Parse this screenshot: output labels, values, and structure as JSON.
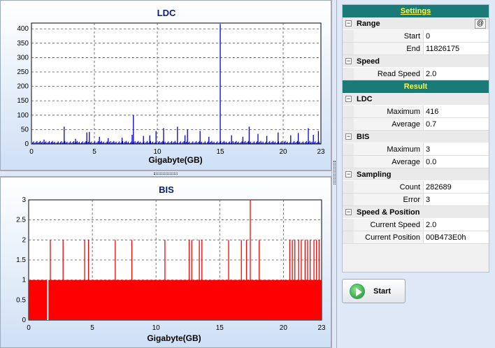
{
  "ldc_chart": {
    "title": "LDC",
    "xlabel": "Gigabyte(GB)",
    "x_ticks": [
      "0",
      "5",
      "10",
      "15",
      "20",
      "23"
    ],
    "y_ticks": [
      "0",
      "50",
      "100",
      "150",
      "200",
      "250",
      "300",
      "350",
      "400"
    ]
  },
  "bis_chart": {
    "title": "BIS",
    "xlabel": "Gigabyte(GB)",
    "x_ticks": [
      "0",
      "5",
      "10",
      "15",
      "20",
      "23"
    ],
    "y_ticks": [
      "0",
      "0.5",
      "1",
      "1.5",
      "2",
      "2.5",
      "3"
    ]
  },
  "chart_data": [
    {
      "type": "bar",
      "title": "LDC",
      "xlabel": "Gigabyte(GB)",
      "ylabel": "",
      "xlim": [
        0,
        23
      ],
      "ylim": [
        0,
        420
      ],
      "grid": true,
      "baseline": 8,
      "spikes": [
        {
          "x": 1.0,
          "y": 15
        },
        {
          "x": 2.6,
          "y": 60
        },
        {
          "x": 3.5,
          "y": 18
        },
        {
          "x": 4.4,
          "y": 40
        },
        {
          "x": 4.6,
          "y": 42
        },
        {
          "x": 5.4,
          "y": 25
        },
        {
          "x": 6.1,
          "y": 20
        },
        {
          "x": 7.2,
          "y": 22
        },
        {
          "x": 8.0,
          "y": 32
        },
        {
          "x": 8.1,
          "y": 100
        },
        {
          "x": 8.9,
          "y": 28
        },
        {
          "x": 9.4,
          "y": 30
        },
        {
          "x": 9.9,
          "y": 45
        },
        {
          "x": 10.5,
          "y": 55
        },
        {
          "x": 11.6,
          "y": 60
        },
        {
          "x": 12.2,
          "y": 30
        },
        {
          "x": 12.4,
          "y": 50
        },
        {
          "x": 13.4,
          "y": 45
        },
        {
          "x": 14.1,
          "y": 25
        },
        {
          "x": 15.0,
          "y": 416
        },
        {
          "x": 15.9,
          "y": 30
        },
        {
          "x": 16.8,
          "y": 25
        },
        {
          "x": 17.3,
          "y": 60
        },
        {
          "x": 18.0,
          "y": 35
        },
        {
          "x": 18.7,
          "y": 28
        },
        {
          "x": 19.6,
          "y": 40
        },
        {
          "x": 20.6,
          "y": 30
        },
        {
          "x": 21.2,
          "y": 38
        },
        {
          "x": 22.0,
          "y": 55
        },
        {
          "x": 22.4,
          "y": 32
        },
        {
          "x": 22.8,
          "y": 45
        }
      ]
    },
    {
      "type": "bar",
      "title": "BIS",
      "xlabel": "Gigabyte(GB)",
      "ylabel": "",
      "xlim": [
        0,
        23
      ],
      "ylim": [
        0,
        3
      ],
      "grid": true,
      "baseline": 1,
      "gaps": [
        {
          "x": 1.5,
          "y": 0
        }
      ],
      "spikes": [
        {
          "x": 1.7,
          "y": 2
        },
        {
          "x": 2.7,
          "y": 2
        },
        {
          "x": 4.4,
          "y": 2
        },
        {
          "x": 4.7,
          "y": 2
        },
        {
          "x": 6.8,
          "y": 2
        },
        {
          "x": 8.1,
          "y": 2
        },
        {
          "x": 10.7,
          "y": 2
        },
        {
          "x": 12.6,
          "y": 2
        },
        {
          "x": 12.8,
          "y": 2
        },
        {
          "x": 13.4,
          "y": 2
        },
        {
          "x": 13.6,
          "y": 2
        },
        {
          "x": 15.7,
          "y": 2
        },
        {
          "x": 16.7,
          "y": 2
        },
        {
          "x": 17.1,
          "y": 2
        },
        {
          "x": 17.4,
          "y": 3
        },
        {
          "x": 18.1,
          "y": 2
        },
        {
          "x": 20.5,
          "y": 2
        },
        {
          "x": 20.7,
          "y": 2
        },
        {
          "x": 20.9,
          "y": 2
        },
        {
          "x": 21.2,
          "y": 2
        },
        {
          "x": 21.4,
          "y": 2
        },
        {
          "x": 21.7,
          "y": 2
        },
        {
          "x": 21.9,
          "y": 2
        },
        {
          "x": 22.1,
          "y": 2
        },
        {
          "x": 22.4,
          "y": 2
        },
        {
          "x": 22.6,
          "y": 2
        },
        {
          "x": 22.8,
          "y": 2
        }
      ]
    }
  ],
  "settings": {
    "header": "Settings",
    "at_button": "@",
    "range_label": "Range",
    "start_label": "Start",
    "start_value": "0",
    "end_label": "End",
    "end_value": "11826175",
    "speed_label": "Speed",
    "read_speed_label": "Read Speed",
    "read_speed_value": "2.0"
  },
  "result": {
    "header": "Result",
    "ldc_label": "LDC",
    "ldc_max_label": "Maximum",
    "ldc_max_value": "416",
    "ldc_avg_label": "Average",
    "ldc_avg_value": "0.7",
    "bis_label": "BIS",
    "bis_max_label": "Maximum",
    "bis_max_value": "3",
    "bis_avg_label": "Average",
    "bis_avg_value": "0.0",
    "sampling_label": "Sampling",
    "count_label": "Count",
    "count_value": "282689",
    "error_label": "Error",
    "error_value": "3",
    "sp_label": "Speed & Position",
    "cur_speed_label": "Current Speed",
    "cur_speed_value": "2.0",
    "cur_pos_label": "Current Position",
    "cur_pos_value": "00B473E0h"
  },
  "start_button": {
    "label": "Start"
  },
  "colors": {
    "ldc": "#0000cc",
    "bis": "#ff0000",
    "header_bg": "#1a7a78",
    "header_text": "#ffff33"
  }
}
